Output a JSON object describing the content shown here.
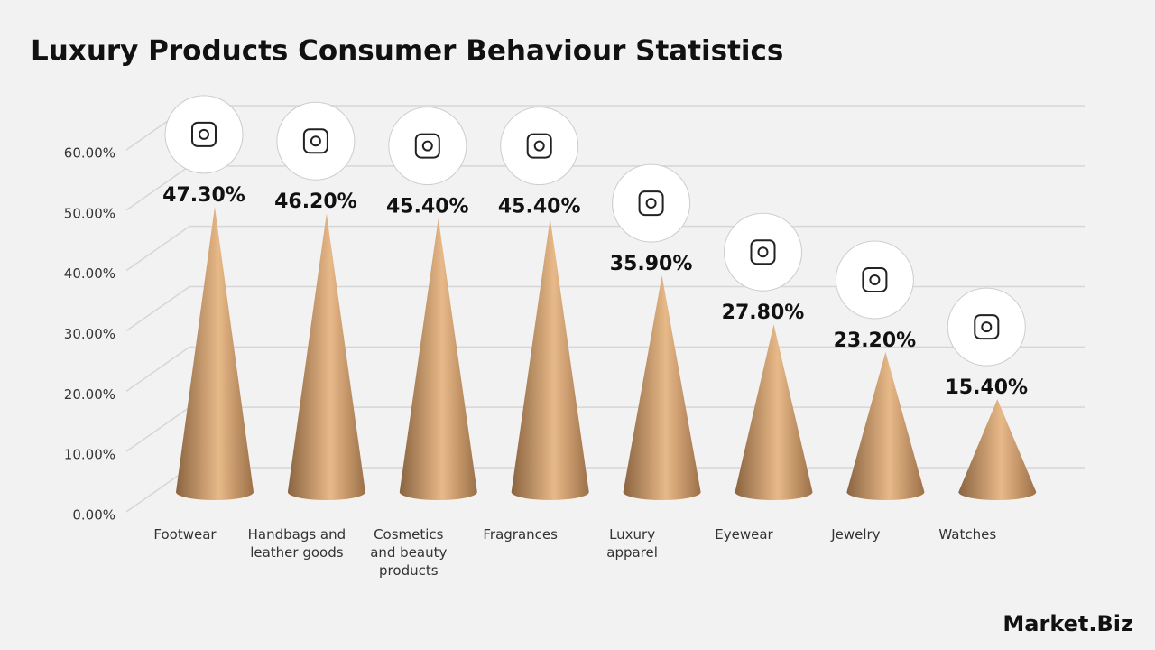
{
  "chart_data": {
    "type": "cone",
    "title": "Luxury Products Consumer Behaviour Statistics",
    "categories": [
      "Footwear",
      "Handbags and leather goods",
      "Cosmetics and beauty products",
      "Fragrances",
      "Luxury apparel",
      "Eyewear",
      "Jewelry",
      "Watches"
    ],
    "values": [
      47.3,
      46.2,
      45.4,
      45.4,
      35.9,
      27.8,
      23.2,
      15.4
    ],
    "value_labels": [
      "47.30%",
      "46.20%",
      "45.40%",
      "45.40%",
      "35.90%",
      "27.80%",
      "23.20%",
      "15.40%"
    ],
    "color": "#c99a6a",
    "ylim": [
      0,
      60
    ],
    "yticks": [
      {
        "value": 0,
        "label": "0.00%"
      },
      {
        "value": 10,
        "label": "10.00%"
      },
      {
        "value": 20,
        "label": "20.00%"
      },
      {
        "value": 30,
        "label": "30.00%"
      },
      {
        "value": 40,
        "label": "40.00%"
      },
      {
        "value": 50,
        "label": "50.00%"
      },
      {
        "value": 60,
        "label": "60.00%"
      }
    ],
    "grid": true
  },
  "logo": "Market.Biz"
}
